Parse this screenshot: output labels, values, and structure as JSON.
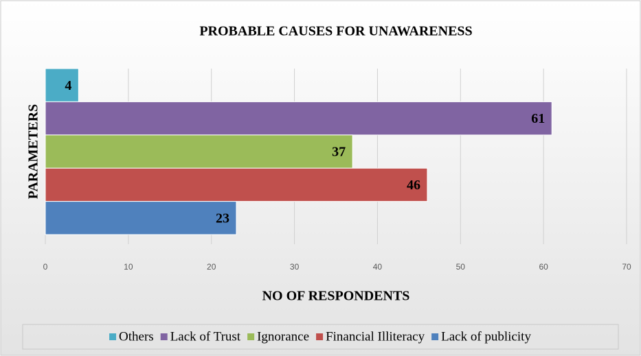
{
  "chart_data": {
    "type": "bar",
    "orientation": "horizontal",
    "title": "PROBABLE CAUSES FOR UNAWARENESS",
    "x_label": "NO OF RESPONDENTS",
    "y_label": "PARAMETERS",
    "series": [
      {
        "name": "Others",
        "color": "#4bacc6",
        "values": [
          4
        ]
      },
      {
        "name": "Lack of Trust",
        "color": "#8064a2",
        "values": [
          61
        ]
      },
      {
        "name": "Ignorance",
        "color": "#9bbb59",
        "values": [
          37
        ]
      },
      {
        "name": "Financial Illiteracy",
        "color": "#c0504d",
        "values": [
          46
        ]
      },
      {
        "name": "Lack of publicity",
        "color": "#4f81bd",
        "values": [
          23
        ]
      }
    ],
    "xlim": [
      0,
      70
    ],
    "xticks": [
      0,
      10,
      20,
      30,
      40,
      50,
      60,
      70
    ],
    "grid": true,
    "legend": "bottom"
  }
}
